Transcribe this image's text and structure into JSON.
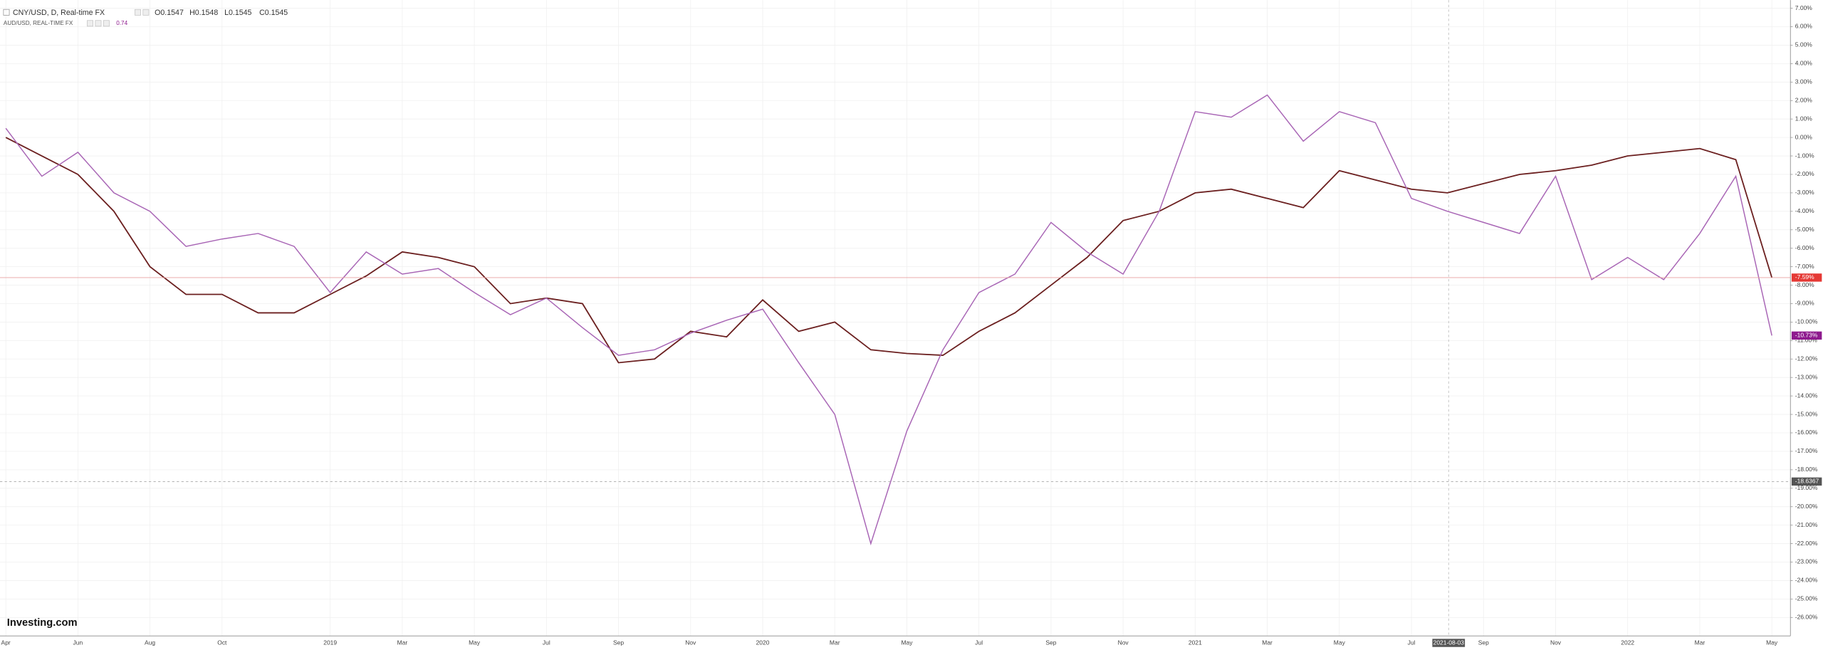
{
  "header": {
    "symbol": "CNY/USD, D, Real-time FX",
    "open": "O0.1547",
    "high": "H0.1548",
    "low": "L0.1545",
    "close": "C0.1545",
    "compare_symbol": "AUD/USD, REAL-TIME FX",
    "compare_value": "0.74",
    "logo": "Investing.com"
  },
  "chart_data": {
    "type": "line",
    "categories": [
      "Apr",
      null,
      "Jun",
      null,
      "Aug",
      null,
      "Oct",
      null,
      null,
      "2019",
      null,
      "Mar",
      null,
      "May",
      null,
      "Jul",
      null,
      "Sep",
      null,
      "Nov",
      null,
      "2020",
      null,
      "Mar",
      null,
      "May",
      null,
      "Jul",
      null,
      "Sep",
      null,
      "Nov",
      null,
      "2021",
      null,
      "Mar",
      null,
      "May",
      null,
      "Jul",
      null,
      "Sep",
      null,
      "Nov",
      null,
      "2022",
      null,
      "Mar",
      null,
      "May"
    ],
    "series": [
      {
        "name": "CNY/USD",
        "color": "#6b1f1f",
        "values": [
          0.0,
          -1.0,
          -2.0,
          -4.0,
          -7.0,
          -8.5,
          -8.5,
          -9.5,
          -9.5,
          -8.5,
          -7.5,
          -6.2,
          -6.5,
          -7.0,
          -9.0,
          -8.7,
          -9.0,
          -12.2,
          -12.0,
          -10.5,
          -10.8,
          -8.8,
          -10.5,
          -10.0,
          -11.5,
          -11.7,
          -11.8,
          -10.5,
          -9.5,
          -8.0,
          -6.5,
          -4.5,
          -4.0,
          -3.0,
          -2.8,
          -3.3,
          -3.8,
          -1.8,
          -2.3,
          -2.8,
          -3.0,
          -2.5,
          -2.0,
          -1.8,
          -1.5,
          -1.0,
          -0.8,
          -0.6,
          -1.2,
          -7.59
        ]
      },
      {
        "name": "AUD/USD",
        "color": "#a865b5",
        "values": [
          0.5,
          -2.1,
          -0.8,
          -3.0,
          -4.0,
          -5.9,
          -5.5,
          -5.2,
          -5.9,
          -8.4,
          -6.2,
          -7.4,
          -7.1,
          -8.4,
          -9.6,
          -8.7,
          -10.3,
          -11.8,
          -11.5,
          -10.6,
          -9.9,
          -9.3,
          -12.2,
          -15.0,
          -22.0,
          -15.9,
          -11.5,
          -8.4,
          -7.4,
          -4.6,
          -6.2,
          -7.4,
          -4.0,
          1.4,
          1.1,
          2.3,
          -0.2,
          1.4,
          0.8,
          -3.3,
          -4.0,
          -4.6,
          -5.2,
          -2.1,
          -7.7,
          -6.5,
          -7.7,
          -5.2,
          -2.1,
          -10.73
        ]
      }
    ],
    "annotations": [
      {
        "text": "-7.59%",
        "value": -7.59,
        "color": "#e53935"
      },
      {
        "text": "-10.73%",
        "value": -10.73,
        "color": "#8e1a8e"
      },
      {
        "text": "-18.6367",
        "value": -18.6367,
        "color": "#555555"
      }
    ],
    "crosshair_date": "2021-08-03",
    "ylim": [
      -27.0,
      7.44
    ],
    "yticks": [
      {
        "value": 7,
        "label": "7.00%"
      },
      {
        "value": 6,
        "label": "6.00%"
      },
      {
        "value": 5,
        "label": "5.00%"
      },
      {
        "value": 4,
        "label": "4.00%"
      },
      {
        "value": 3,
        "label": "3.00%"
      },
      {
        "value": 2,
        "label": "2.00%"
      },
      {
        "value": 1,
        "label": "1.00%"
      },
      {
        "value": 0,
        "label": "0.00%"
      },
      {
        "value": -1,
        "label": "-1.00%"
      },
      {
        "value": -2,
        "label": "-2.00%"
      },
      {
        "value": -3,
        "label": "-3.00%"
      },
      {
        "value": -4,
        "label": "-4.00%"
      },
      {
        "value": -5,
        "label": "-5.00%"
      },
      {
        "value": -6,
        "label": "-6.00%"
      },
      {
        "value": -7,
        "label": "-7.00%"
      },
      {
        "value": -8,
        "label": "-8.00%"
      },
      {
        "value": -9,
        "label": "-9.00%"
      },
      {
        "value": -10,
        "label": "-10.00%"
      },
      {
        "value": -11,
        "label": "-11.00%"
      },
      {
        "value": -12,
        "label": "-12.00%"
      },
      {
        "value": -13,
        "label": "-13.00%"
      },
      {
        "value": -14,
        "label": "-14.00%"
      },
      {
        "value": -15,
        "label": "-15.00%"
      },
      {
        "value": -16,
        "label": "-16.00%"
      },
      {
        "value": -17,
        "label": "-17.00%"
      },
      {
        "value": -18,
        "label": "-18.00%"
      },
      {
        "value": -19,
        "label": "-19.00%"
      },
      {
        "value": -20,
        "label": "-20.00%"
      },
      {
        "value": -21,
        "label": "-21.00%"
      },
      {
        "value": -22,
        "label": "-22.00%"
      },
      {
        "value": -23,
        "label": "-23.00%"
      },
      {
        "value": -24,
        "label": "-24.00%"
      },
      {
        "value": -25,
        "label": "-25.00%"
      },
      {
        "value": -26,
        "label": "-26.00%"
      }
    ],
    "grid": true
  }
}
